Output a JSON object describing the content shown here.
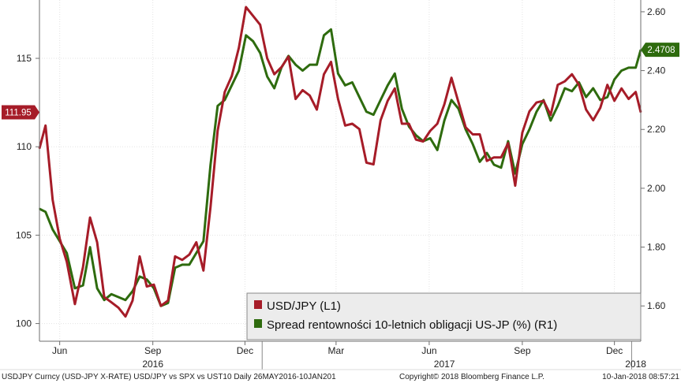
{
  "chart_data": {
    "type": "line",
    "legend": {
      "placement": "bottom-right",
      "entries": [
        {
          "label": "USD/JPY (L1)",
          "color": "#a61c28"
        },
        {
          "label": "Spread rentowności 10-letnich obligacji US-JP (%) (R1)",
          "color": "#2e6b0e"
        }
      ]
    },
    "y_left": {
      "ticks": [
        100,
        105,
        110,
        115
      ],
      "tick_labels": [
        "100",
        "105",
        "110",
        "115"
      ],
      "range": [
        99,
        118.3
      ]
    },
    "y_right": {
      "ticks": [
        1.6,
        1.8,
        2.0,
        2.2,
        2.4,
        2.6
      ],
      "tick_labels": [
        "1.60",
        "1.80",
        "2.00",
        "2.20",
        "2.40",
        "2.60"
      ],
      "range": [
        1.48,
        2.64
      ]
    },
    "x_axis": {
      "range": [
        "2016-05-26",
        "2018-01-10"
      ],
      "month_ticks": [
        {
          "label": "Jun",
          "date": "2016-06-15"
        },
        {
          "label": "Sep",
          "date": "2016-09-15"
        },
        {
          "label": "Dec",
          "date": "2016-12-15"
        },
        {
          "label": "Mar",
          "date": "2017-03-15"
        },
        {
          "label": "Jun",
          "date": "2017-06-15"
        },
        {
          "label": "Sep",
          "date": "2017-09-15"
        },
        {
          "label": "Dec",
          "date": "2017-12-15"
        }
      ],
      "year_labels": [
        {
          "label": "2016",
          "date": "2016-09-15"
        },
        {
          "label": "2017",
          "date": "2017-06-30"
        },
        {
          "label": "2018",
          "date": "2018-01-05"
        }
      ],
      "year_dividers": [
        "2017-01-01",
        "2018-01-01"
      ]
    },
    "last_values": [
      {
        "series": "USD/JPY (L1)",
        "axis": "left",
        "value": 111.95,
        "label": "111.95"
      },
      {
        "series": "Spread rentowności 10-letnich obligacji US-JP (%) (R1)",
        "axis": "right",
        "value": 2.4708,
        "label": "2.4708"
      }
    ],
    "x": [
      "2016-05-26",
      "2016-06-01",
      "2016-06-08",
      "2016-06-15",
      "2016-06-22",
      "2016-06-30",
      "2016-07-08",
      "2016-07-15",
      "2016-07-22",
      "2016-07-29",
      "2016-08-05",
      "2016-08-12",
      "2016-08-19",
      "2016-08-26",
      "2016-09-02",
      "2016-09-09",
      "2016-09-16",
      "2016-09-23",
      "2016-09-30",
      "2016-10-07",
      "2016-10-14",
      "2016-10-21",
      "2016-10-28",
      "2016-11-04",
      "2016-11-11",
      "2016-11-18",
      "2016-11-25",
      "2016-12-02",
      "2016-12-09",
      "2016-12-16",
      "2016-12-23",
      "2016-12-30",
      "2017-01-06",
      "2017-01-13",
      "2017-01-20",
      "2017-01-27",
      "2017-02-03",
      "2017-02-10",
      "2017-02-17",
      "2017-02-24",
      "2017-03-03",
      "2017-03-10",
      "2017-03-17",
      "2017-03-24",
      "2017-03-31",
      "2017-04-07",
      "2017-04-14",
      "2017-04-21",
      "2017-04-28",
      "2017-05-05",
      "2017-05-12",
      "2017-05-19",
      "2017-05-26",
      "2017-06-02",
      "2017-06-09",
      "2017-06-16",
      "2017-06-23",
      "2017-06-30",
      "2017-07-07",
      "2017-07-14",
      "2017-07-21",
      "2017-07-28",
      "2017-08-04",
      "2017-08-11",
      "2017-08-18",
      "2017-08-25",
      "2017-09-01",
      "2017-09-08",
      "2017-09-15",
      "2017-09-22",
      "2017-09-29",
      "2017-10-06",
      "2017-10-13",
      "2017-10-20",
      "2017-10-27",
      "2017-11-03",
      "2017-11-10",
      "2017-11-17",
      "2017-11-24",
      "2017-12-01",
      "2017-12-08",
      "2017-12-15",
      "2017-12-22",
      "2017-12-29",
      "2018-01-05",
      "2018-01-10"
    ],
    "series": [
      {
        "name": "USD/JPY (L1)",
        "axis": "left",
        "color": "#a61c28",
        "values": [
          109.9,
          111.2,
          107.0,
          104.8,
          103.5,
          101.1,
          103.2,
          106.0,
          104.6,
          101.5,
          101.2,
          100.9,
          100.4,
          101.3,
          103.8,
          102.1,
          102.2,
          101.0,
          101.3,
          103.8,
          103.6,
          103.9,
          104.6,
          103.0,
          106.6,
          110.9,
          113.1,
          114.0,
          115.6,
          117.9,
          117.4,
          116.9,
          115.0,
          114.1,
          114.5,
          115.1,
          112.7,
          113.2,
          112.9,
          112.1,
          114.1,
          114.8,
          112.7,
          111.2,
          111.3,
          111.0,
          109.1,
          109.0,
          111.5,
          112.6,
          113.3,
          111.3,
          111.3,
          110.4,
          110.3,
          110.9,
          111.3,
          112.4,
          113.9,
          112.5,
          111.1,
          110.7,
          110.7,
          109.2,
          109.4,
          109.4,
          110.2,
          107.8,
          110.8,
          112.0,
          112.5,
          112.6,
          111.8,
          113.5,
          113.7,
          114.1,
          113.5,
          112.1,
          111.5,
          112.2,
          113.5,
          112.6,
          113.3,
          112.7,
          113.1,
          111.95
        ]
      },
      {
        "name": "Spread rentowności 10-letnich obligacji US-JP (%) (R1)",
        "axis": "right",
        "color": "#2e6b0e",
        "values": [
          1.93,
          1.92,
          1.86,
          1.82,
          1.78,
          1.66,
          1.67,
          1.8,
          1.66,
          1.62,
          1.64,
          1.63,
          1.62,
          1.65,
          1.7,
          1.69,
          1.66,
          1.6,
          1.61,
          1.73,
          1.74,
          1.74,
          1.78,
          1.82,
          2.08,
          2.28,
          2.3,
          2.35,
          2.4,
          2.52,
          2.5,
          2.46,
          2.38,
          2.34,
          2.41,
          2.45,
          2.42,
          2.4,
          2.42,
          2.42,
          2.52,
          2.54,
          2.39,
          2.35,
          2.36,
          2.31,
          2.26,
          2.25,
          2.3,
          2.35,
          2.39,
          2.27,
          2.21,
          2.18,
          2.16,
          2.17,
          2.13,
          2.23,
          2.3,
          2.27,
          2.2,
          2.15,
          2.09,
          2.12,
          2.08,
          2.07,
          2.16,
          2.05,
          2.15,
          2.2,
          2.26,
          2.3,
          2.23,
          2.28,
          2.34,
          2.33,
          2.36,
          2.31,
          2.34,
          2.3,
          2.31,
          2.37,
          2.4,
          2.41,
          2.41,
          2.4708
        ]
      }
    ]
  },
  "footer": {
    "left_text": "USDJPY Curncy (USD-JPY X-RATE) USD/JPY vs SPX vs UST10  Daily 26MAY2016-10JAN201",
    "copyright": "Copyright© 2018 Bloomberg Finance L.P.",
    "timestamp": "10-Jan-2018 08:57:21"
  }
}
